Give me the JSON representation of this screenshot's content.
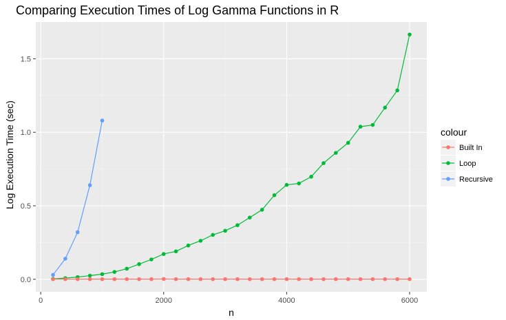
{
  "chart_data": {
    "type": "line",
    "title": "Comparing Execution Times of Log Gamma Functions in R",
    "xlabel": "n",
    "ylabel": "Log Execution Time (sec)",
    "xlim": [
      -80,
      6280
    ],
    "ylim": [
      -0.085,
      1.75
    ],
    "xticks": [
      0,
      2000,
      4000,
      6000
    ],
    "xtick_labels": [
      "0",
      "2000",
      "4000",
      "6000"
    ],
    "yticks": [
      0.0,
      0.5,
      1.0,
      1.5
    ],
    "ytick_labels": [
      "0.0",
      "0.5",
      "1.0",
      "1.5"
    ],
    "grid": true,
    "legend_position": "right",
    "legend_title": "colour",
    "series": [
      {
        "name": "Built In",
        "color": "#F8766D",
        "x": [
          200,
          400,
          600,
          800,
          1000,
          1200,
          1400,
          1600,
          1800,
          2000,
          2200,
          2400,
          2600,
          2800,
          3000,
          3200,
          3400,
          3600,
          3800,
          4000,
          4200,
          4400,
          4600,
          4800,
          5000,
          5200,
          5400,
          5600,
          5800,
          6000
        ],
        "values": [
          0.001,
          0.001,
          0.001,
          0.001,
          0.001,
          0.001,
          0.001,
          0.001,
          0.001,
          0.002,
          0.001,
          0.001,
          0.001,
          0.001,
          0.001,
          0.001,
          0.001,
          0.001,
          0.001,
          0.001,
          0.001,
          0.001,
          0.001,
          0.001,
          0.001,
          0.001,
          0.001,
          0.001,
          0.001,
          0.001
        ]
      },
      {
        "name": "Loop",
        "color": "#00BA38",
        "x": [
          200,
          400,
          600,
          800,
          1000,
          1200,
          1400,
          1600,
          1800,
          2000,
          2200,
          2400,
          2600,
          2800,
          3000,
          3200,
          3400,
          3600,
          3800,
          4000,
          4200,
          4400,
          4600,
          4800,
          5000,
          5200,
          5400,
          5600,
          5800,
          6000
        ],
        "values": [
          0.003,
          0.008,
          0.015,
          0.025,
          0.035,
          0.05,
          0.072,
          0.103,
          0.135,
          0.172,
          0.19,
          0.23,
          0.262,
          0.302,
          0.33,
          0.368,
          0.42,
          0.473,
          0.572,
          0.642,
          0.652,
          0.698,
          0.79,
          0.86,
          0.928,
          1.038,
          1.05,
          1.168,
          1.285,
          1.665
        ]
      },
      {
        "name": "Recursive",
        "color": "#619CFF",
        "x": [
          200,
          400,
          600,
          800,
          1000
        ],
        "values": [
          0.03,
          0.14,
          0.32,
          0.64,
          1.08
        ]
      }
    ]
  }
}
